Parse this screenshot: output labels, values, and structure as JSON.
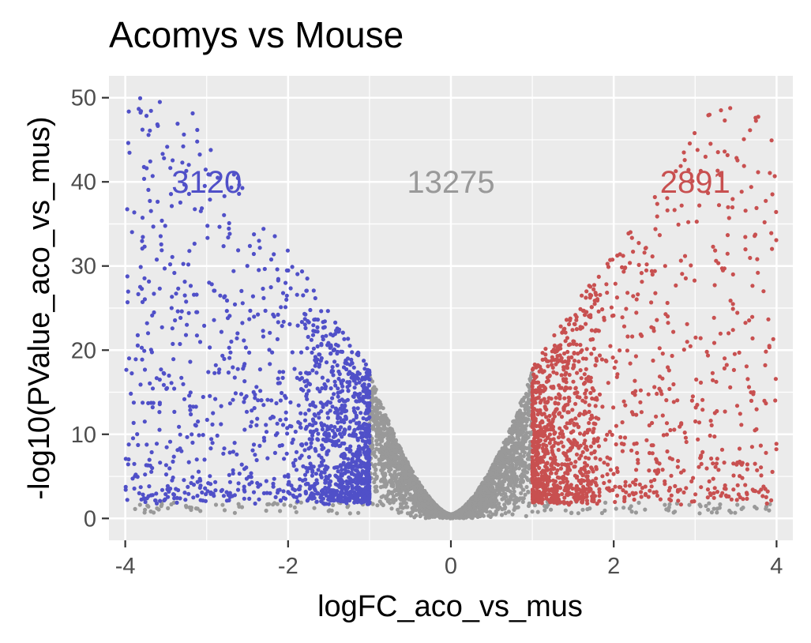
{
  "chart_data": {
    "type": "scatter",
    "title": "Acomys vs Mouse",
    "xlabel": "logFC_aco_vs_mus",
    "ylabel": "-log10(PValue_aco_vs_mus)",
    "xlim": [
      -4.2,
      4.2
    ],
    "ylim": [
      -2.6,
      52.6
    ],
    "x_ticks": [
      -4,
      -2,
      0,
      2,
      4
    ],
    "x_tick_labels": [
      "-4",
      "-2",
      "0",
      "2",
      "4"
    ],
    "y_ticks": [
      0,
      10,
      20,
      30,
      40,
      50
    ],
    "y_tick_labels": [
      "0",
      "10",
      "20",
      "30",
      "40",
      "50"
    ],
    "grid": true,
    "legend": "none",
    "thresholds": {
      "logFC": 1
    },
    "series": [
      {
        "group": "down",
        "color": "#5050c8",
        "count": 3120,
        "x_range": [
          -4,
          -1
        ],
        "y_range": [
          1.5,
          50
        ]
      },
      {
        "group": "not-significant",
        "color": "#999999",
        "count": 13275,
        "x_range": [
          -1,
          1
        ],
        "y_range": [
          0,
          19
        ]
      },
      {
        "group": "up",
        "color": "#c85050",
        "count": 2891,
        "x_range": [
          1,
          4
        ],
        "y_range": [
          1.5,
          50
        ]
      }
    ],
    "annotations": [
      {
        "text": "3120",
        "x": -3,
        "y": 40,
        "color": "#5050c8"
      },
      {
        "text": "13275",
        "x": 0,
        "y": 40,
        "color": "#999999"
      },
      {
        "text": "2891",
        "x": 3,
        "y": 40,
        "color": "#c85050"
      }
    ],
    "panel_background": "#ebebeb",
    "grid_color": "#ffffff"
  }
}
